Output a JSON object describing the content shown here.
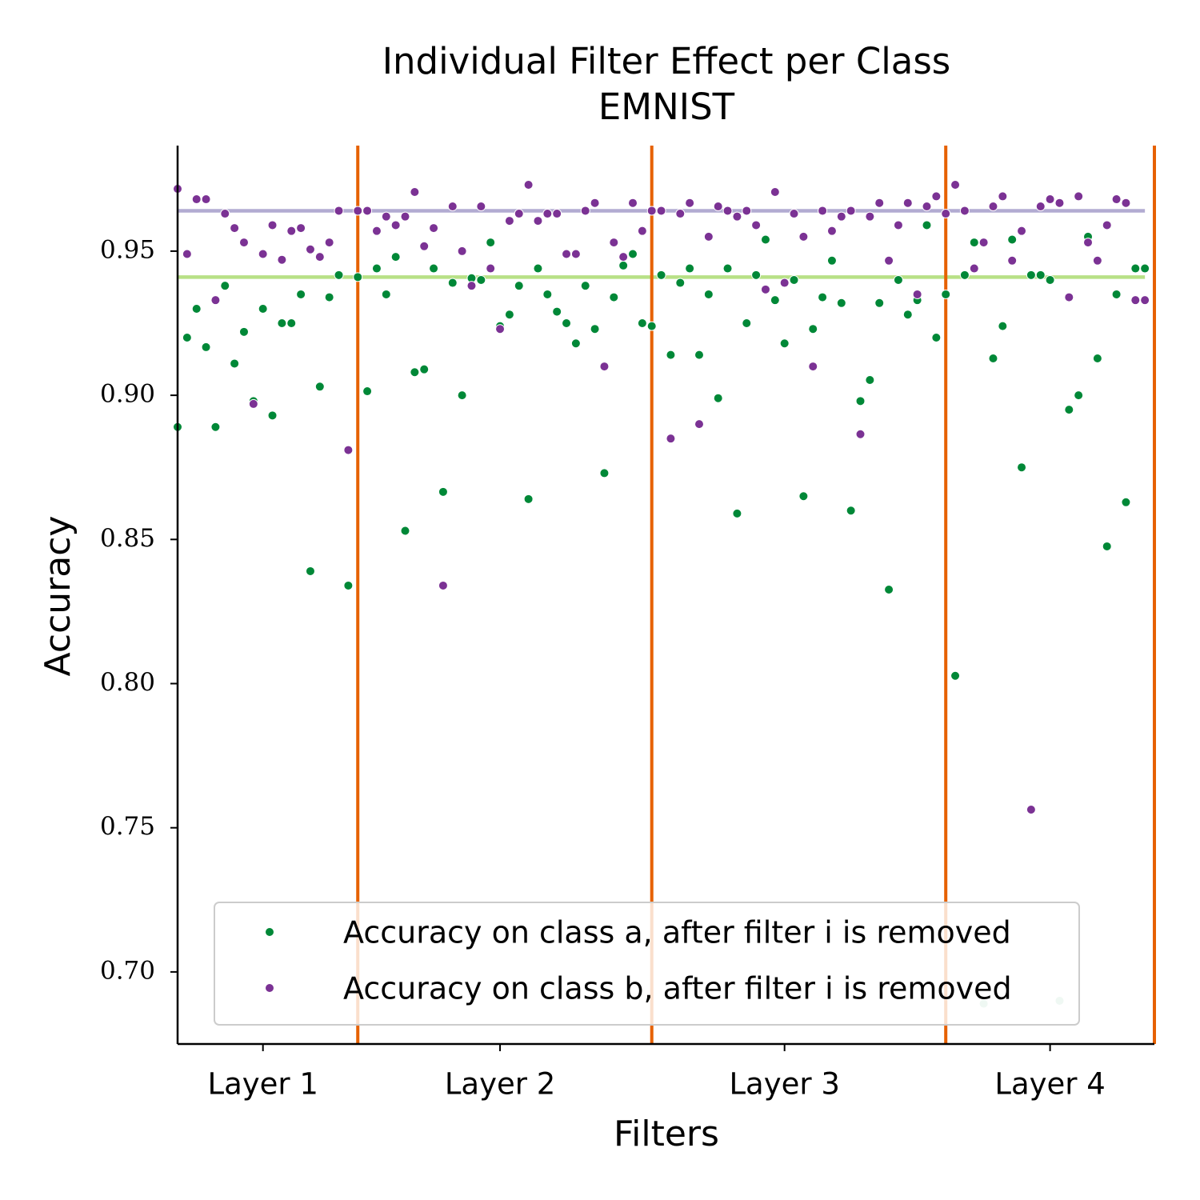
{
  "chart_data": {
    "type": "scatter",
    "title": "Individual Filter Effect per Class",
    "subtitle": "EMNIST",
    "x_label": "Filters",
    "y_label": "Accuracy",
    "x": [
      0,
      1,
      2,
      3,
      4,
      5,
      6,
      7,
      8,
      9,
      10,
      11,
      12,
      13,
      14,
      15,
      16,
      17,
      18,
      19,
      20,
      21,
      22,
      23,
      24,
      25,
      26,
      27,
      28,
      29,
      30,
      31,
      32,
      33,
      34,
      35,
      36,
      37,
      38,
      39,
      40,
      41,
      42,
      43,
      44,
      45,
      46,
      47,
      48,
      49,
      50,
      51,
      52,
      53,
      54,
      55,
      56,
      57,
      58,
      59,
      60,
      61,
      62,
      63,
      64,
      65,
      66,
      67,
      68,
      69,
      70,
      71,
      72,
      73,
      74,
      75,
      76,
      77,
      78,
      79,
      80,
      81,
      82,
      83,
      84,
      85,
      86,
      87,
      88,
      89,
      90,
      91,
      92,
      93,
      94,
      95,
      96,
      97,
      98,
      99,
      100,
      101,
      102
    ],
    "series": [
      {
        "name": "Accuracy on class a, after filter i is removed",
        "color": "#008837",
        "values": [
          0.889,
          0.92,
          0.93,
          0.9167,
          0.889,
          0.938,
          0.911,
          0.922,
          0.898,
          0.93,
          0.893,
          0.925,
          0.925,
          0.935,
          0.839,
          0.903,
          0.934,
          0.9417,
          0.834,
          0.941,
          0.9014,
          0.944,
          0.935,
          0.948,
          0.853,
          0.908,
          0.909,
          0.944,
          0.8665,
          0.939,
          0.9,
          0.9406,
          0.94,
          0.953,
          0.924,
          0.928,
          0.938,
          0.864,
          0.944,
          0.935,
          0.929,
          0.925,
          0.918,
          0.938,
          0.923,
          0.873,
          0.934,
          0.945,
          0.949,
          0.925,
          0.924,
          0.9417,
          0.914,
          0.939,
          0.944,
          0.914,
          0.935,
          0.899,
          0.944,
          0.859,
          0.925,
          0.9417,
          0.954,
          0.933,
          0.918,
          0.94,
          0.865,
          0.923,
          0.934,
          0.9467,
          0.932,
          0.86,
          0.898,
          0.9053,
          0.932,
          0.8326,
          0.94,
          0.928,
          0.933,
          0.959,
          0.92,
          0.935,
          0.8027,
          0.9417,
          0.953,
          0.689,
          0.9128,
          0.924,
          0.954,
          0.875,
          0.9417,
          0.9417,
          0.94,
          0.69,
          0.895,
          0.9,
          0.955,
          0.9128,
          0.8476,
          0.935,
          0.8629,
          0.944,
          0.944
        ]
      },
      {
        "name": "Accuracy on class b, after filter i is removed",
        "color": "#7b3294",
        "values": [
          0.9716,
          0.949,
          0.968,
          0.968,
          0.933,
          0.963,
          0.958,
          0.953,
          0.897,
          0.949,
          0.959,
          0.947,
          0.957,
          0.958,
          0.9506,
          0.948,
          0.953,
          0.964,
          0.881,
          0.964,
          0.964,
          0.957,
          0.962,
          0.959,
          0.962,
          0.9705,
          0.9517,
          0.958,
          0.834,
          0.9655,
          0.95,
          0.938,
          0.9655,
          0.944,
          0.923,
          0.9605,
          0.963,
          0.973,
          0.9605,
          0.963,
          0.963,
          0.949,
          0.949,
          0.964,
          0.9667,
          0.91,
          0.953,
          0.948,
          0.9667,
          0.957,
          0.964,
          0.964,
          0.885,
          0.963,
          0.9667,
          0.89,
          0.955,
          0.9655,
          0.964,
          0.962,
          0.964,
          0.959,
          0.9367,
          0.9705,
          0.939,
          0.963,
          0.955,
          0.91,
          0.964,
          0.957,
          0.962,
          0.964,
          0.8865,
          0.962,
          0.9667,
          0.9467,
          0.959,
          0.9667,
          0.935,
          0.9655,
          0.969,
          0.963,
          0.973,
          0.964,
          0.944,
          0.953,
          0.9655,
          0.969,
          0.9467,
          0.957,
          0.7563,
          0.9655,
          0.968,
          0.9667,
          0.934,
          0.969,
          0.953,
          0.9467,
          0.959,
          0.968,
          0.9667,
          0.933,
          0.933
        ]
      }
    ],
    "hlines": [
      {
        "value": 0.964,
        "color": "#b2abd2"
      },
      {
        "value": 0.941,
        "color": "#b8e186"
      }
    ],
    "vlines": [
      19,
      50,
      81,
      103
    ],
    "vline_color": "#e66101",
    "xlim": [
      0,
      103
    ],
    "ylim": [
      0.675,
      0.9866
    ],
    "xticks": [
      {
        "value": 9,
        "label": "Layer 1"
      },
      {
        "value": 34,
        "label": "Layer 2"
      },
      {
        "value": 64,
        "label": "Layer 3"
      },
      {
        "value": 92,
        "label": "Layer 4"
      }
    ],
    "yticks": [
      {
        "value": 0.7,
        "label": "0.70"
      },
      0.75,
      {
        "value": 0.8,
        "label": "0.80"
      },
      0.85,
      {
        "value": 0.9,
        "label": "0.90"
      },
      0.95
    ],
    "legend": "lower center"
  }
}
